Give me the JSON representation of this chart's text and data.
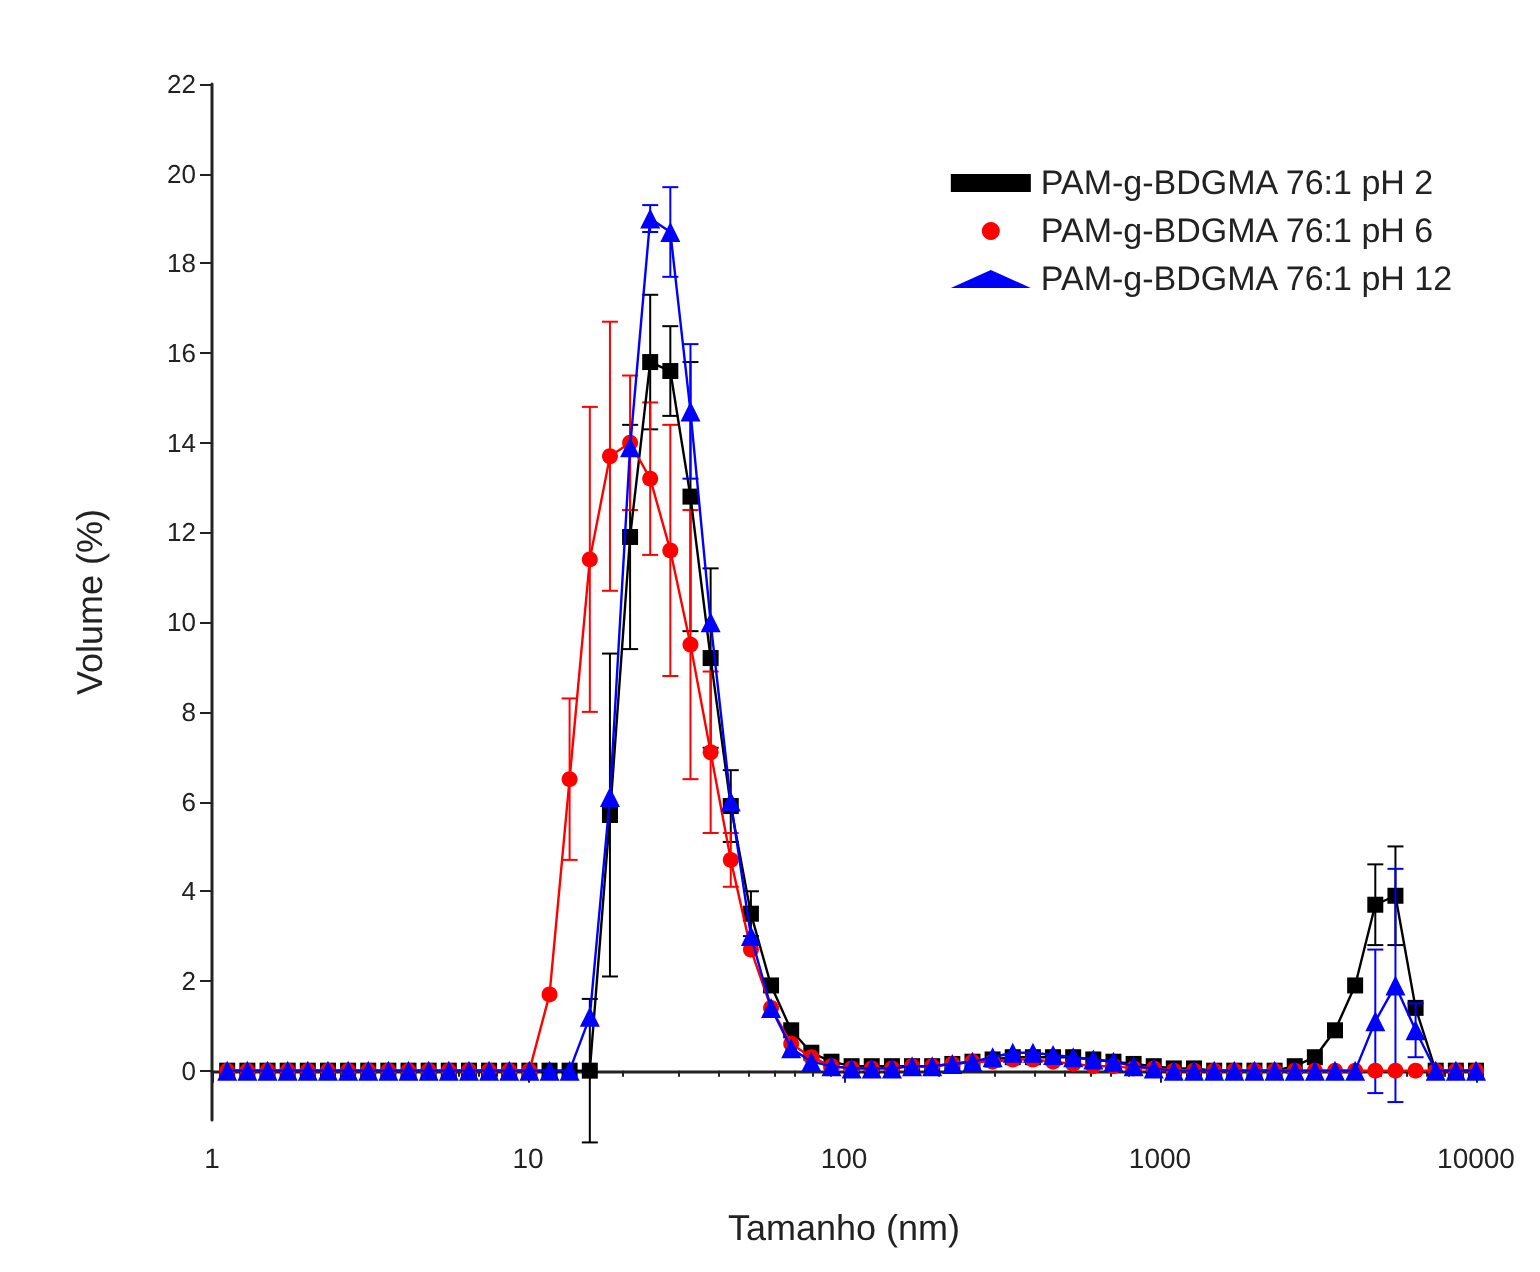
{
  "chart_data": {
    "type": "line",
    "xlabel": "Tamanho (nm)",
    "ylabel": "Volume (%)",
    "x": [
      1.117,
      1.294,
      1.499,
      1.736,
      2.01,
      2.328,
      2.696,
      3.122,
      3.615,
      4.187,
      4.849,
      5.615,
      6.503,
      7.531,
      8.721,
      10.1,
      11.7,
      13.54,
      15.69,
      18.17,
      21.04,
      24.36,
      28.21,
      32.67,
      37.84,
      43.82,
      50.75,
      58.77,
      68.06,
      78.82,
      91.28,
      105.7,
      122.4,
      141.8,
      164.2,
      190.1,
      220.2,
      255,
      295.3,
      342,
      396.1,
      458.7,
      531.2,
      615.1,
      712.4,
      825,
      955.4,
      1106,
      1281,
      1484,
      1718,
      1990,
      2305,
      2669,
      3091,
      3580,
      4145,
      4801,
      5560,
      6439,
      7456,
      8635,
      10000
    ],
    "series": [
      {
        "name": "PAM-g-BDGMA 76:1 pH 2",
        "color": "#000000",
        "marker": "square",
        "values": [
          0,
          0,
          0,
          0,
          0,
          0,
          0,
          0,
          0,
          0,
          0,
          0,
          0,
          0,
          0,
          0,
          0,
          0,
          0,
          5.7,
          11.9,
          15.8,
          15.6,
          12.8,
          9.2,
          5.9,
          3.5,
          1.9,
          0.9,
          0.4,
          0.2,
          0.1,
          0.1,
          0.1,
          0.1,
          0.1,
          0.15,
          0.2,
          0.25,
          0.3,
          0.3,
          0.3,
          0.3,
          0.25,
          0.2,
          0.15,
          0.1,
          0.05,
          0.05,
          0,
          0,
          0,
          0,
          0.1,
          0.3,
          0.9,
          1.9,
          3.7,
          3.9,
          1.4,
          0,
          0,
          0
        ],
        "errors": [
          null,
          null,
          null,
          null,
          null,
          null,
          null,
          null,
          null,
          null,
          null,
          null,
          null,
          null,
          null,
          null,
          null,
          null,
          1.6,
          3.6,
          2.5,
          1.5,
          1,
          3,
          2,
          0.8,
          0.5,
          null,
          null,
          null,
          null,
          null,
          null,
          null,
          null,
          null,
          null,
          null,
          null,
          null,
          null,
          null,
          null,
          null,
          null,
          null,
          null,
          null,
          null,
          null,
          null,
          null,
          null,
          null,
          null,
          null,
          null,
          0.9,
          1.1,
          null,
          null,
          null,
          null
        ]
      },
      {
        "name": "PAM-g-BDGMA 76:1 pH 6",
        "color": "#ff0000",
        "marker": "circle",
        "values": [
          0,
          0,
          0,
          0,
          0,
          0,
          0,
          0,
          0,
          0,
          0,
          0,
          0,
          0,
          0,
          0,
          1.7,
          6.5,
          11.4,
          13.7,
          14.0,
          13.2,
          11.6,
          9.5,
          7.1,
          4.7,
          2.7,
          1.4,
          0.6,
          0.3,
          0.1,
          0.05,
          0.05,
          0.05,
          0.1,
          0.1,
          0.15,
          0.2,
          0.2,
          0.25,
          0.25,
          0.2,
          0.15,
          0.1,
          0.1,
          0.05,
          0.05,
          0,
          0,
          0,
          0,
          0,
          0,
          0,
          0,
          0,
          0,
          0,
          0,
          0,
          0,
          0,
          0
        ],
        "errors": [
          null,
          null,
          null,
          null,
          null,
          null,
          null,
          null,
          null,
          null,
          null,
          null,
          null,
          null,
          null,
          null,
          null,
          1.8,
          3.4,
          3,
          1.5,
          1.7,
          2.8,
          3,
          1.8,
          0.6,
          null,
          null,
          null,
          null,
          null,
          null,
          null,
          null,
          null,
          null,
          null,
          null,
          null,
          null,
          null,
          null,
          null,
          null,
          null,
          null,
          null,
          null,
          null,
          null,
          null,
          null,
          null,
          null,
          null,
          null,
          null,
          null,
          null,
          null,
          null,
          null,
          null
        ]
      },
      {
        "name": "PAM-g-BDGMA 76:1 pH 12",
        "color": "#0000ff",
        "marker": "triangle",
        "values": [
          0,
          0,
          0,
          0,
          0,
          0,
          0,
          0,
          0,
          0,
          0,
          0,
          0,
          0,
          0,
          0,
          0,
          0,
          1.2,
          6.1,
          13.9,
          19.0,
          18.7,
          14.7,
          10.0,
          6.0,
          3.0,
          1.4,
          0.5,
          0.2,
          0.1,
          0.05,
          0.05,
          0.05,
          0.1,
          0.1,
          0.15,
          0.2,
          0.3,
          0.4,
          0.4,
          0.35,
          0.3,
          0.25,
          0.2,
          0.1,
          0.05,
          0,
          0,
          0,
          0,
          0,
          0,
          0,
          0,
          0,
          0,
          1.1,
          1.9,
          0.9,
          0,
          0,
          0
        ],
        "errors": [
          null,
          null,
          null,
          null,
          null,
          null,
          null,
          null,
          null,
          null,
          null,
          null,
          null,
          null,
          null,
          null,
          null,
          null,
          null,
          null,
          null,
          0.3,
          1,
          1.5,
          null,
          null,
          null,
          null,
          null,
          null,
          null,
          null,
          null,
          null,
          null,
          null,
          null,
          null,
          null,
          null,
          null,
          null,
          null,
          null,
          null,
          null,
          null,
          null,
          null,
          null,
          null,
          null,
          null,
          null,
          null,
          null,
          null,
          1.6,
          2.6,
          0.6,
          null,
          null,
          null
        ]
      }
    ],
    "log": "x",
    "xlim": [
      1,
      10000
    ],
    "xticks": [
      1,
      10,
      100,
      1000,
      10000
    ],
    "ylim": [
      -1.1,
      22
    ],
    "yticks": [
      0,
      2,
      4,
      6,
      8,
      10,
      12,
      14,
      16,
      18,
      20,
      22
    ],
    "legend": "top right",
    "grid": false
  }
}
